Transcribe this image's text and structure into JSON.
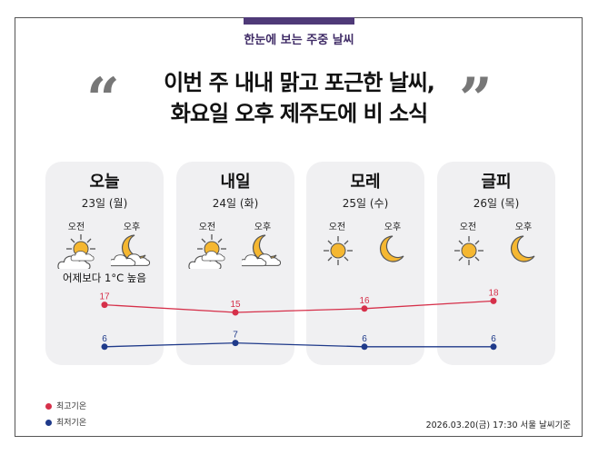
{
  "subtitle": "한눈에 보는 주중 날씨",
  "headline": {
    "line1": "이번 주 내내 맑고 포근한 날씨,",
    "line2": "화요일 오후 제주도에 비 소식"
  },
  "quotes": {
    "open": "“",
    "close": "”"
  },
  "days": [
    {
      "name": "오늘",
      "date": "23일 (월)",
      "am": "오전",
      "pm": "오후",
      "am_icon": "sun-cloud-icon",
      "pm_icon": "moon-cloud-icon",
      "note": "어제보다 1°C 높음"
    },
    {
      "name": "내일",
      "date": "24일 (화)",
      "am": "오전",
      "pm": "오후",
      "am_icon": "sun-cloud-icon",
      "pm_icon": "moon-cloud-icon"
    },
    {
      "name": "모레",
      "date": "25일 (수)",
      "am": "오전",
      "pm": "오후",
      "am_icon": "sun-icon",
      "pm_icon": "moon-icon"
    },
    {
      "name": "글피",
      "date": "26일 (목)",
      "am": "오전",
      "pm": "오후",
      "am_icon": "sun-icon",
      "pm_icon": "moon-icon"
    }
  ],
  "chart_data": {
    "type": "line",
    "categories": [
      "23일 (월)",
      "24일 (화)",
      "25일 (수)",
      "26일 (목)"
    ],
    "series": [
      {
        "name": "최고기온",
        "values": [
          17,
          15,
          16,
          18
        ],
        "color": "#d6304a"
      },
      {
        "name": "최저기온",
        "values": [
          6,
          7,
          6,
          6
        ],
        "color": "#1f3a8a"
      }
    ]
  },
  "legend": {
    "high": "최고기온",
    "low": "최저기온"
  },
  "footer": "2026.03.20(금) 17:30 서울 날씨기준"
}
